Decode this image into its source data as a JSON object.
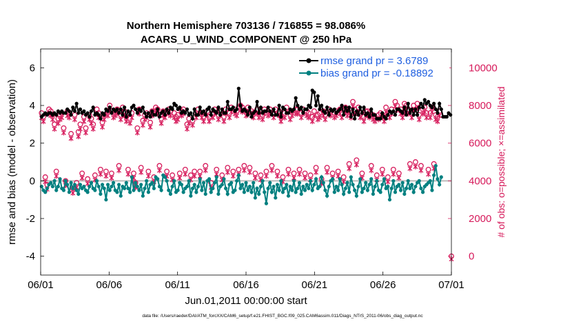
{
  "chart_data": {
    "type": "line",
    "title_line1": "Northern Hemisphere 703136 / 716855 = 98.086%",
    "title_line2": "ACARS_U_WIND_COMPONENT @ 250 hPa",
    "xlabel": "Jun.01,2011 00:00:00 start",
    "ylabel_left": "rmse and bias (model - observation)",
    "ylabel_right": "# of obs: o=possible; ×=assimilated",
    "footer": "data file: /Users/raeder/DAI/ATM_forcXX/CAM6_setup/f.e21.FHIST_BGC.f09_025.CAM6assim.011/Diags_NTrS_2011-06/obs_diag_output.nc",
    "xlim": [
      0,
      30
    ],
    "ylim_left": [
      -5,
      7
    ],
    "ylim_right": [
      -1000,
      11000
    ],
    "x_ticks": [
      0,
      5,
      10,
      15,
      20,
      25,
      30
    ],
    "x_tick_labels": [
      "06/01",
      "06/06",
      "06/11",
      "06/16",
      "06/21",
      "06/26",
      "07/01"
    ],
    "y_ticks_left": [
      -4,
      -2,
      0,
      2,
      4,
      6
    ],
    "y_tick_labels_left": [
      "-4",
      "-2",
      "0",
      "2",
      "4",
      "6"
    ],
    "y_ticks_right": [
      0,
      2000,
      4000,
      6000,
      8000,
      10000
    ],
    "y_tick_labels_right": [
      "0",
      "2000",
      "4000",
      "6000",
      "8000",
      "10000"
    ],
    "legend": [
      {
        "label": "rmse grand pr = 3.6789",
        "color": "#000000"
      },
      {
        "label": "bias grand pr = -0.18892",
        "color": "#008080"
      }
    ],
    "colors": {
      "rmse": "#000000",
      "bias": "#008080",
      "obs": "#d6195a",
      "legend_text": "#1f5fe0",
      "zero_line": "#bbbbbb"
    },
    "series": [
      {
        "name": "rmse",
        "axis": "left",
        "values": [
          3.4,
          3.5,
          3.6,
          3.5,
          3.6,
          3.6,
          3.5,
          3.6,
          3.5,
          3.7,
          3.6,
          3.7,
          3.6,
          3.6,
          3.8,
          3.7,
          3.5,
          3.9,
          3.7,
          4.1,
          3.6,
          3.8,
          3.6,
          3.7,
          3.5,
          3.6,
          3.4,
          3.7,
          3.9,
          3.5,
          3.6,
          3.5,
          3.3,
          3.6,
          3.5,
          3.8,
          3.7,
          3.9,
          3.6,
          3.8,
          3.7,
          3.8,
          3.6,
          3.8,
          3.5,
          3.9,
          3.4,
          3.7,
          3.5,
          3.9,
          4.0,
          3.8,
          3.6,
          3.8,
          3.7,
          3.9,
          3.6,
          3.4,
          3.6,
          3.4,
          3.7,
          3.5,
          3.5,
          3.8,
          3.4,
          3.6,
          3.7,
          3.5,
          3.8,
          3.6,
          3.9,
          3.8,
          4.1,
          4.0,
          3.8,
          3.9,
          3.6,
          3.7,
          3.6,
          3.8,
          3.5,
          3.6,
          3.3,
          3.8,
          3.5,
          3.5,
          3.9,
          3.6,
          3.7,
          3.5,
          3.8,
          3.9,
          3.5,
          3.8,
          3.7,
          3.6,
          3.9,
          3.5,
          3.8,
          3.6,
          3.6,
          4.2,
          3.8,
          3.8,
          3.9,
          3.7,
          3.8,
          4.9,
          4.0,
          3.7,
          3.8,
          3.7,
          3.5,
          3.9,
          3.4,
          3.6,
          3.7,
          4.2,
          3.6,
          3.9,
          3.6,
          3.7,
          3.7,
          3.9,
          3.7,
          3.5,
          3.8,
          3.5,
          3.5,
          4.0,
          3.4,
          3.9,
          3.8,
          3.6,
          3.6,
          3.8,
          3.7,
          3.8,
          4.4,
          4.0,
          3.8,
          3.9,
          3.6,
          3.8,
          3.8,
          4.0,
          3.9,
          4.8,
          4.7,
          4.0,
          4.5,
          3.8,
          4.0,
          3.7,
          3.6,
          3.9,
          3.5,
          3.8,
          3.7,
          3.8,
          3.6,
          3.7,
          3.8,
          4.0,
          3.5,
          3.9,
          3.7,
          3.9,
          3.4,
          3.8,
          3.3,
          3.7,
          3.5,
          3.9,
          3.6,
          3.9,
          3.5,
          3.6,
          3.4,
          3.8,
          3.5,
          3.5,
          3.3,
          3.3,
          3.3,
          3.6,
          3.4,
          3.3,
          3.5,
          3.7,
          3.6,
          3.7,
          3.5,
          3.8,
          3.8,
          3.7,
          3.6,
          3.9,
          3.5,
          4.1,
          3.6,
          3.8,
          3.5,
          3.8,
          3.5,
          3.9,
          4.1,
          3.9,
          4.3,
          4.1,
          4.2,
          4.0,
          3.9,
          4.1,
          3.8,
          3.6,
          4.1,
          3.8,
          3.4,
          3.4,
          3.4,
          3.6,
          3.5
        ]
      },
      {
        "name": "bias",
        "axis": "left",
        "values": [
          -0.3,
          -0.5,
          -0.6,
          -0.4,
          -0.2,
          -0.1,
          -0.3,
          0.0,
          -0.5,
          -0.3,
          0.1,
          -0.4,
          -0.5,
          0.0,
          -0.2,
          -0.6,
          -0.1,
          -0.4,
          -0.2,
          -0.5,
          -0.7,
          -0.2,
          -0.4,
          -0.3,
          -0.5,
          -0.6,
          -0.3,
          -0.1,
          -0.4,
          -0.5,
          0.0,
          -0.3,
          -0.7,
          -0.2,
          -0.4,
          -1.0,
          -0.2,
          -0.5,
          -0.3,
          -0.1,
          -0.5,
          -0.6,
          -0.2,
          -0.8,
          -0.3,
          -0.4,
          -0.1,
          -0.4,
          -0.6,
          0.2,
          -0.5,
          -0.1,
          -0.3,
          -0.5,
          -0.2,
          -0.8,
          -0.4,
          0.0,
          -0.6,
          -0.2,
          -0.1,
          -0.4,
          0.2,
          0.1,
          -0.3,
          -0.5,
          0.3,
          0.2,
          0.0,
          -0.5,
          -0.7,
          -0.3,
          0.0,
          -0.6,
          -0.5,
          -0.1,
          -0.2,
          -0.6,
          -0.4,
          -0.3,
          0.0,
          -0.8,
          -0.4,
          -0.2,
          -0.6,
          -0.3,
          0.1,
          -0.5,
          -0.1,
          -0.7,
          0.0,
          0.1,
          -0.6,
          -0.4,
          -0.1,
          0.2,
          -0.7,
          -0.3,
          -0.2,
          0.1,
          -0.4,
          -0.7,
          -0.2,
          -0.1,
          -0.6,
          -0.5,
          0.0,
          0.3,
          -0.4,
          -0.2,
          -0.6,
          -0.1,
          -0.5,
          -0.3,
          -0.6,
          -0.1,
          -0.9,
          -0.4,
          -0.7,
          -0.3,
          0.0,
          -0.6,
          -1.2,
          -0.4,
          -0.1,
          -0.6,
          -0.3,
          -0.9,
          -0.2,
          -0.5,
          0.0,
          -0.6,
          -0.4,
          -0.2,
          -0.8,
          -0.3,
          -0.5,
          0.0,
          -0.6,
          -0.4,
          -0.1,
          -0.7,
          -0.3,
          -0.5,
          -0.2,
          -0.4,
          0.0,
          -0.5,
          -0.2,
          0.1,
          -0.4,
          -0.3,
          0.2,
          -0.1,
          -0.5,
          -0.8,
          -0.3,
          0.0,
          0.1,
          -0.6,
          -0.3,
          -0.5,
          0.1,
          -0.2,
          -0.7,
          -0.4,
          -0.1,
          -0.6,
          0.2,
          -0.2,
          -0.5,
          -0.8,
          -0.3,
          0.1,
          -0.6,
          -0.4,
          -0.1,
          -0.5,
          -0.2,
          0.1,
          -0.7,
          -0.3,
          0.0,
          -0.5,
          -0.6,
          -0.2,
          0.1,
          -0.4,
          -0.3,
          -1.0,
          -0.4,
          0.0,
          -0.6,
          -0.3,
          -0.2,
          -0.5,
          -0.1,
          -0.7,
          -0.4,
          0.0,
          -0.4,
          -0.2,
          -0.6,
          -0.3,
          -0.1,
          0.0,
          -0.4,
          -0.6,
          -0.3,
          -0.2,
          -0.1,
          0.0,
          -0.5,
          0.3,
          0.8,
          0.1,
          -0.2,
          0.2
        ]
      },
      {
        "name": "obs_possible",
        "axis": "right",
        "values": [
          7600,
          7400,
          4200,
          3800,
          7800,
          7700,
          7500,
          7000,
          4500,
          7300,
          7500,
          7600,
          6800,
          4000,
          7700,
          7600,
          6500,
          3600,
          7500,
          3900,
          6600,
          7000,
          4400,
          7400,
          6800,
          4100,
          7500,
          7300,
          7000,
          4300,
          7800,
          7600,
          4600,
          7100,
          7500,
          4500,
          7700,
          8000,
          4400,
          7600,
          7700,
          7800,
          4800,
          7500,
          7900,
          7700,
          7400,
          4600,
          7300,
          7600,
          4400,
          3900,
          6800,
          7800,
          4700,
          7200,
          7500,
          7600,
          4500,
          7100,
          7700,
          4200,
          7900,
          7800,
          4800,
          7300,
          7700,
          7600,
          4500,
          7800,
          7700,
          4300,
          7600,
          7400,
          7500,
          4400,
          7700,
          7800,
          4600,
          7000,
          7300,
          4300,
          7200,
          4500,
          7600,
          7800,
          4500,
          7600,
          7400,
          4800,
          7700,
          7400,
          3900,
          7600,
          7800,
          4600,
          7500,
          7700,
          4300,
          7400,
          7800,
          4700,
          7600,
          7900,
          4500,
          7800,
          7700,
          4600,
          8000,
          7900,
          4800,
          7700,
          7900,
          4700,
          7700,
          7600,
          4400,
          7800,
          7600,
          4300,
          7500,
          7800,
          4500,
          7700,
          7800,
          4800,
          7600,
          7800,
          4500,
          7700,
          7400,
          4200,
          7600,
          7900,
          4600,
          7500,
          7700,
          4400,
          7800,
          7800,
          4600,
          7600,
          7800,
          4400,
          7700,
          7600,
          4300,
          7400,
          7700,
          4700,
          7500,
          7600,
          4100,
          7700,
          7500,
          4700,
          7800,
          7700,
          4400,
          7600,
          7700,
          4500,
          7800,
          7600,
          4200,
          7900,
          7700,
          4900,
          7600,
          8200,
          7800,
          5100,
          7900,
          7600,
          4400,
          7400,
          7700,
          7700,
          7600,
          4800,
          7500,
          7400,
          4300,
          7500,
          7600,
          4600,
          7400,
          7900,
          4200,
          7600,
          7800,
          4600,
          8200,
          8000,
          4400,
          7800,
          7600,
          8100,
          8000,
          7800,
          4900,
          7600,
          8000,
          5000,
          8100,
          7500,
          4800,
          7800,
          7900,
          7600,
          4600,
          7600,
          7900,
          4900,
          7500,
          7400,
          7700,
          0
        ]
      },
      {
        "name": "obs_assimilated",
        "axis": "right",
        "values": [
          7500,
          7300,
          4100,
          3700,
          7700,
          7600,
          7400,
          6900,
          4400,
          7200,
          7400,
          7500,
          6700,
          3900,
          7600,
          7500,
          6400,
          3500,
          7400,
          3800,
          6500,
          6900,
          4300,
          7300,
          6700,
          4000,
          7400,
          7200,
          6900,
          4200,
          7700,
          7500,
          4500,
          7000,
          7400,
          4400,
          7600,
          7900,
          4300,
          7500,
          7600,
          7700,
          4700,
          7400,
          7800,
          7600,
          7300,
          4500,
          7200,
          7500,
          4300,
          3800,
          6700,
          7700,
          4600,
          7100,
          7400,
          7500,
          4400,
          7000,
          7600,
          4100,
          7800,
          7700,
          4700,
          7200,
          7600,
          7500,
          4400,
          7700,
          7600,
          4200,
          7500,
          7300,
          7400,
          4300,
          7600,
          7700,
          4500,
          6900,
          7200,
          4200,
          7100,
          4400,
          7500,
          7700,
          4400,
          7500,
          7300,
          4700,
          7600,
          7300,
          3800,
          7500,
          7700,
          4500,
          7400,
          7600,
          4200,
          7300,
          7700,
          4600,
          7500,
          7800,
          4400,
          7700,
          7600,
          4500,
          7900,
          7800,
          4700,
          7600,
          7800,
          4600,
          7600,
          7500,
          4300,
          7700,
          7500,
          4200,
          7400,
          7700,
          4400,
          7600,
          7700,
          4700,
          7500,
          7700,
          4400,
          7600,
          7300,
          4100,
          7500,
          7800,
          4500,
          7400,
          7600,
          4300,
          7700,
          7700,
          4500,
          7500,
          7700,
          4300,
          7600,
          7500,
          4200,
          7300,
          7600,
          4600,
          7400,
          7500,
          4000,
          7600,
          7400,
          4600,
          7700,
          7600,
          4300,
          7500,
          7600,
          4400,
          7700,
          7500,
          4100,
          7800,
          7600,
          4800,
          7500,
          8100,
          7700,
          5000,
          7800,
          7500,
          4300,
          7300,
          7600,
          7600,
          7500,
          4700,
          7400,
          7300,
          4200,
          7400,
          7500,
          4500,
          7300,
          7800,
          4100,
          7500,
          7700,
          4500,
          8100,
          7900,
          4300,
          7700,
          7500,
          8000,
          7900,
          7700,
          4800,
          7500,
          7900,
          4900,
          8000,
          7400,
          4700,
          7700,
          7800,
          7500,
          4500,
          7500,
          7800,
          4800,
          7400,
          7300,
          7600,
          0
        ]
      }
    ]
  }
}
